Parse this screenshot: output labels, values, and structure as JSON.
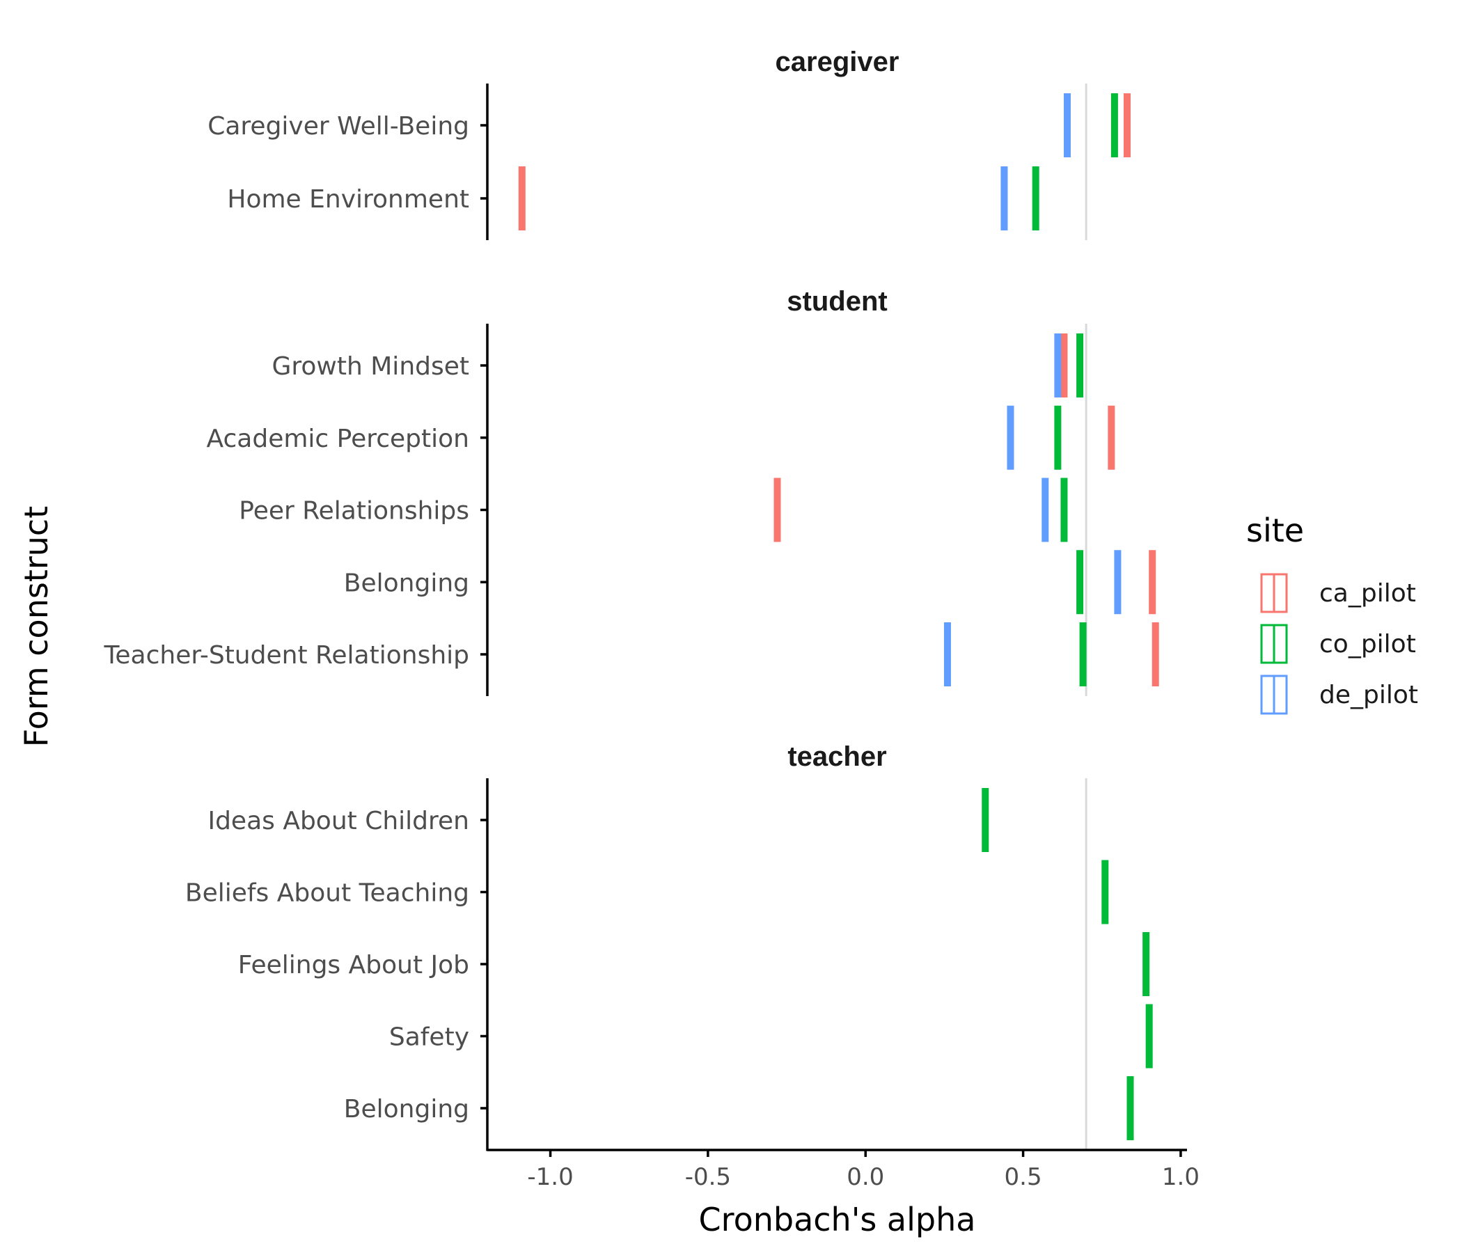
{
  "chart_data": {
    "type": "scatter",
    "xlabel": "Cronbach's alpha",
    "ylabel": "Form construct",
    "xlim": [
      -1.2,
      1.02
    ],
    "xticks": [
      -1.0,
      -0.5,
      0.0,
      0.5,
      1.0
    ],
    "xtick_labels": [
      "-1.0",
      "-0.5",
      "0.0",
      "0.5",
      "1.0"
    ],
    "reference_line": 0.7,
    "grid": false,
    "legend": {
      "title": "site",
      "position": "right",
      "entries": [
        {
          "name": "ca_pilot",
          "color": "#F8766D"
        },
        {
          "name": "co_pilot",
          "color": "#00BA38"
        },
        {
          "name": "de_pilot",
          "color": "#619CFF"
        }
      ]
    },
    "facets": [
      {
        "title": "caregiver",
        "categories": [
          "Caregiver Well-Being",
          "Home Environment"
        ],
        "points": [
          {
            "construct": "Caregiver Well-Being",
            "site": "ca_pilot",
            "alpha": 0.83
          },
          {
            "construct": "Caregiver Well-Being",
            "site": "co_pilot",
            "alpha": 0.79
          },
          {
            "construct": "Caregiver Well-Being",
            "site": "de_pilot",
            "alpha": 0.64
          },
          {
            "construct": "Home Environment",
            "site": "ca_pilot",
            "alpha": -1.09
          },
          {
            "construct": "Home Environment",
            "site": "co_pilot",
            "alpha": 0.54
          },
          {
            "construct": "Home Environment",
            "site": "de_pilot",
            "alpha": 0.44
          }
        ]
      },
      {
        "title": "student",
        "categories": [
          "Growth Mindset",
          "Academic Perception",
          "Peer Relationships",
          "Belonging",
          "Teacher-Student Relationship"
        ],
        "points": [
          {
            "construct": "Growth Mindset",
            "site": "ca_pilot",
            "alpha": 0.63
          },
          {
            "construct": "Growth Mindset",
            "site": "co_pilot",
            "alpha": 0.68
          },
          {
            "construct": "Growth Mindset",
            "site": "de_pilot",
            "alpha": 0.61
          },
          {
            "construct": "Academic Perception",
            "site": "ca_pilot",
            "alpha": 0.78
          },
          {
            "construct": "Academic Perception",
            "site": "co_pilot",
            "alpha": 0.61
          },
          {
            "construct": "Academic Perception",
            "site": "de_pilot",
            "alpha": 0.46
          },
          {
            "construct": "Peer Relationships",
            "site": "ca_pilot",
            "alpha": -0.28
          },
          {
            "construct": "Peer Relationships",
            "site": "co_pilot",
            "alpha": 0.63
          },
          {
            "construct": "Peer Relationships",
            "site": "de_pilot",
            "alpha": 0.57
          },
          {
            "construct": "Belonging",
            "site": "ca_pilot",
            "alpha": 0.91
          },
          {
            "construct": "Belonging",
            "site": "co_pilot",
            "alpha": 0.68
          },
          {
            "construct": "Belonging",
            "site": "de_pilot",
            "alpha": 0.8
          },
          {
            "construct": "Teacher-Student Relationship",
            "site": "ca_pilot",
            "alpha": 0.92
          },
          {
            "construct": "Teacher-Student Relationship",
            "site": "co_pilot",
            "alpha": 0.69
          },
          {
            "construct": "Teacher-Student Relationship",
            "site": "de_pilot",
            "alpha": 0.26
          }
        ]
      },
      {
        "title": "teacher",
        "categories": [
          "Ideas About Children",
          "Beliefs About Teaching",
          "Feelings About Job",
          "Safety",
          "Belonging"
        ],
        "points": [
          {
            "construct": "Ideas About Children",
            "site": "co_pilot",
            "alpha": 0.38
          },
          {
            "construct": "Beliefs About Teaching",
            "site": "co_pilot",
            "alpha": 0.76
          },
          {
            "construct": "Feelings About Job",
            "site": "co_pilot",
            "alpha": 0.89
          },
          {
            "construct": "Safety",
            "site": "co_pilot",
            "alpha": 0.9
          },
          {
            "construct": "Belonging",
            "site": "co_pilot",
            "alpha": 0.84
          }
        ]
      }
    ]
  }
}
